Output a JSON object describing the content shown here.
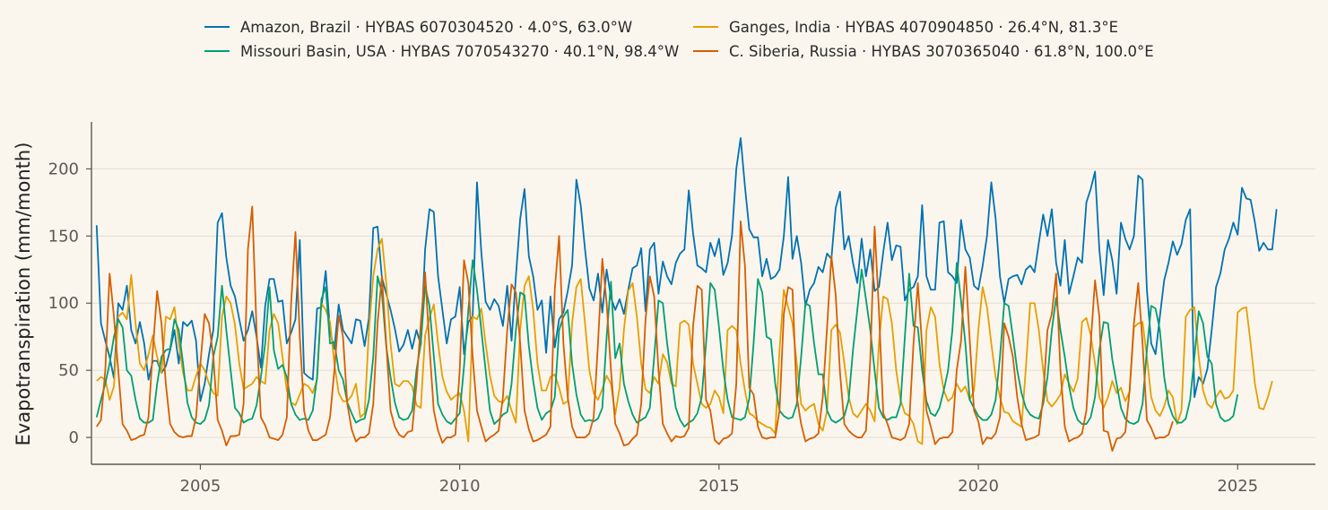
{
  "chart_data": {
    "type": "line",
    "title": "",
    "xlabel": "",
    "ylabel": "Evapotranspiration (mm/month)",
    "xlim": [
      2002.9,
      2026.5
    ],
    "ylim": [
      -20,
      235
    ],
    "x_ticks": [
      2005,
      2010,
      2015,
      2020,
      2025
    ],
    "y_ticks": [
      0,
      50,
      100,
      150,
      200
    ],
    "grid": "horizontal",
    "legend_position": "top-center",
    "legend_columns": 2,
    "x_start": 2003.0,
    "x_step_months": 1,
    "series": [
      {
        "name": "Amazon, Brazil · HYBAS 6070304520 · 4.0°S, 63.0°W",
        "color": "#0072b2",
        "values": [
          158,
          85,
          72,
          60,
          44,
          100,
          95,
          113,
          80,
          70,
          86,
          70,
          43,
          57,
          57,
          48,
          53,
          65,
          80,
          55,
          86,
          83,
          87,
          72,
          27,
          40,
          62,
          80,
          160,
          167,
          134,
          113,
          105,
          88,
          72,
          80,
          94,
          75,
          52,
          98,
          118,
          118,
          101,
          102,
          70,
          78,
          88,
          147,
          48,
          45,
          43,
          96,
          97,
          124,
          79,
          66,
          99,
          80,
          75,
          70,
          88,
          87,
          68,
          89,
          156,
          157,
          119,
          107,
          95,
          81,
          64,
          69,
          80,
          66,
          80,
          69,
          140,
          170,
          168,
          120,
          95,
          70,
          88,
          90,
          112,
          62,
          86,
          90,
          190,
          138,
          101,
          95,
          103,
          98,
          83,
          113,
          72,
          120,
          163,
          185,
          135,
          120,
          95,
          102,
          63,
          105,
          67,
          88,
          93,
          109,
          128,
          192,
          173,
          140,
          111,
          102,
          122,
          93,
          125,
          104,
          95,
          103,
          92,
          110,
          126,
          128,
          141,
          94,
          140,
          145,
          107,
          131,
          120,
          114,
          130,
          137,
          140,
          184,
          152,
          128,
          126,
          123,
          145,
          135,
          148,
          121,
          130,
          150,
          200,
          223,
          187,
          155,
          149,
          149,
          120,
          133,
          118,
          120,
          125,
          150,
          194,
          133,
          150,
          130,
          98,
          110,
          115,
          127,
          123,
          137,
          133,
          171,
          183,
          140,
          150,
          130,
          115,
          148,
          120,
          140,
          109,
          112,
          138,
          160,
          132,
          143,
          142,
          102,
          110,
          112,
          120,
          173,
          120,
          110,
          110,
          160,
          161,
          123,
          120,
          115,
          162,
          140,
          134,
          113,
          110,
          128,
          150,
          190,
          163,
          120,
          100,
          118,
          120,
          121,
          114,
          125,
          128,
          123,
          145,
          166,
          150,
          170,
          130,
          113,
          147,
          107,
          120,
          134,
          130,
          175,
          185,
          198,
          140,
          106,
          147,
          132,
          107,
          160,
          148,
          140,
          150,
          195,
          192,
          110,
          70,
          62,
          90,
          117,
          130,
          146,
          136,
          144,
          162,
          170,
          30,
          45,
          40,
          51,
          80,
          112,
          122,
          140,
          148,
          160,
          151,
          186,
          178,
          177,
          160,
          139,
          145,
          140,
          140,
          170
        ]
      },
      {
        "name": "Ganges, India · HYBAS 4070904850 · 26.4°N, 81.3°E",
        "color": "#e69f00",
        "values": [
          42,
          45,
          43,
          28,
          38,
          90,
          93,
          88,
          121,
          85,
          55,
          50,
          62,
          76,
          60,
          48,
          90,
          88,
          97,
          70,
          48,
          35,
          35,
          46,
          55,
          50,
          40,
          33,
          31,
          90,
          105,
          100,
          84,
          55,
          36,
          38,
          40,
          45,
          42,
          40,
          80,
          92,
          85,
          60,
          35,
          26,
          24,
          32,
          40,
          38,
          33,
          43,
          100,
          95,
          86,
          55,
          33,
          27,
          27,
          31,
          40,
          15,
          18,
          80,
          120,
          140,
          148,
          115,
          70,
          40,
          38,
          42,
          42,
          38,
          24,
          22,
          76,
          89,
          99,
          70,
          45,
          34,
          28,
          31,
          33,
          20,
          -3,
          90,
          88,
          96,
          70,
          46,
          31,
          27,
          26,
          31,
          20,
          11,
          80,
          113,
          120,
          95,
          55,
          35,
          35,
          45,
          47,
          37,
          25,
          27,
          85,
          112,
          118,
          85,
          50,
          33,
          28,
          36,
          46,
          40,
          17,
          37,
          80,
          109,
          115,
          90,
          55,
          36,
          33,
          45,
          40,
          62,
          56,
          40,
          38,
          85,
          87,
          84,
          55,
          40,
          25,
          22,
          25,
          35,
          30,
          18,
          80,
          83,
          80,
          55,
          35,
          18,
          16,
          12,
          10,
          8,
          7,
          3,
          65,
          110,
          97,
          85,
          55,
          25,
          20,
          23,
          25,
          10,
          5,
          20,
          80,
          84,
          78,
          55,
          30,
          18,
          15,
          20,
          25,
          20,
          12,
          70,
          105,
          103,
          85,
          50,
          28,
          18,
          16,
          10,
          -3,
          -5,
          80,
          97,
          90,
          55,
          35,
          27,
          30,
          40,
          34,
          38,
          28,
          35,
          80,
          112,
          97,
          70,
          45,
          30,
          19,
          18,
          12,
          10,
          8,
          52,
          100,
          100,
          80,
          50,
          27,
          23,
          27,
          32,
          47,
          40,
          34,
          44,
          86,
          89,
          76,
          55,
          30,
          22,
          30,
          42,
          33,
          37,
          27,
          34,
          82,
          85,
          86,
          60,
          30,
          20,
          16,
          23,
          35,
          30,
          10,
          20,
          90,
          95,
          97,
          60,
          35,
          25,
          22,
          30,
          35,
          29,
          30,
          35,
          93,
          96,
          97,
          70,
          40,
          22,
          21,
          30,
          42
        ]
      },
      {
        "name": "Missouri Basin, USA · HYBAS 7070543270 · 40.1°N, 98.4°W",
        "color": "#009e73",
        "values": [
          15,
          28,
          40,
          55,
          75,
          88,
          82,
          50,
          46,
          28,
          14,
          11,
          11,
          13,
          40,
          60,
          65,
          66,
          88,
          80,
          55,
          26,
          15,
          11,
          10,
          13,
          24,
          60,
          75,
          113,
          80,
          50,
          22,
          18,
          11,
          13,
          14,
          24,
          45,
          70,
          112,
          65,
          51,
          54,
          45,
          25,
          17,
          13,
          14,
          13,
          20,
          45,
          103,
          112,
          70,
          71,
          50,
          43,
          26,
          18,
          11,
          13,
          14,
          28,
          60,
          120,
          108,
          68,
          45,
          26,
          15,
          13,
          14,
          20,
          50,
          70,
          113,
          98,
          61,
          25,
          17,
          12,
          10,
          14,
          18,
          53,
          95,
          132,
          110,
          80,
          50,
          20,
          10,
          13,
          17,
          19,
          40,
          80,
          108,
          106,
          68,
          42,
          22,
          13,
          18,
          20,
          30,
          80,
          90,
          95,
          55,
          32,
          17,
          12,
          13,
          12,
          14,
          22,
          75,
          116,
          59,
          70,
          40,
          27,
          17,
          11,
          13,
          15,
          22,
          60,
          102,
          100,
          70,
          45,
          22,
          13,
          8,
          11,
          13,
          18,
          30,
          70,
          115,
          110,
          82,
          50,
          28,
          15,
          14,
          13,
          15,
          29,
          70,
          118,
          108,
          75,
          73,
          40,
          20,
          16,
          14,
          15,
          25,
          60,
          100,
          98,
          70,
          47,
          47,
          20,
          13,
          11,
          13,
          16,
          28,
          65,
          95,
          125,
          103,
          80,
          50,
          22,
          15,
          13,
          15,
          15,
          25,
          75,
          122,
          83,
          82,
          50,
          27,
          18,
          16,
          22,
          35,
          50,
          80,
          130,
          102,
          70,
          28,
          22,
          16,
          13,
          13,
          17,
          28,
          60,
          100,
          98,
          75,
          50,
          33,
          22,
          17,
          15,
          14,
          25,
          45,
          80,
          104,
          80,
          60,
          38,
          22,
          13,
          10,
          10,
          15,
          30,
          65,
          86,
          85,
          58,
          40,
          22,
          14,
          11,
          10,
          12,
          25,
          65,
          98,
          96,
          80,
          45,
          25,
          16,
          11,
          11,
          14,
          28,
          60,
          94,
          85,
          60,
          55,
          25,
          15,
          12,
          13,
          16,
          32
        ]
      },
      {
        "name": "C. Siberia, Russia · HYBAS 3070365040 · 61.8°N, 100.0°E",
        "color": "#d55e00",
        "values": [
          8,
          13,
          50,
          122,
          90,
          50,
          10,
          5,
          -2,
          -1,
          1,
          2,
          15,
          65,
          109,
          85,
          40,
          10,
          4,
          1,
          0,
          1,
          1,
          15,
          55,
          92,
          85,
          60,
          13,
          5,
          -6,
          1,
          1,
          2,
          25,
          140,
          172,
          80,
          15,
          9,
          0,
          -1,
          -2,
          2,
          15,
          100,
          153,
          75,
          20,
          5,
          -2,
          -2,
          0,
          2,
          15,
          50,
          91,
          75,
          25,
          6,
          -3,
          0,
          0,
          3,
          25,
          85,
          120,
          70,
          20,
          8,
          2,
          0,
          4,
          5,
          40,
          85,
          123,
          68,
          20,
          5,
          -4,
          0,
          0,
          2,
          50,
          132,
          115,
          60,
          20,
          8,
          -3,
          0,
          2,
          5,
          30,
          80,
          114,
          108,
          70,
          20,
          6,
          -3,
          -2,
          0,
          2,
          8,
          110,
          150,
          70,
          30,
          8,
          0,
          0,
          0,
          3,
          15,
          70,
          133,
          100,
          50,
          10,
          3,
          -6,
          -5,
          -1,
          2,
          25,
          88,
          120,
          105,
          50,
          10,
          3,
          -3,
          1,
          0,
          1,
          7,
          83,
          113,
          110,
          28,
          20,
          -2,
          -5,
          -1,
          0,
          3,
          40,
          161,
          128,
          37,
          32,
          8,
          0,
          -1,
          0,
          0,
          20,
          92,
          112,
          110,
          30,
          10,
          -3,
          -1,
          0,
          3,
          30,
          82,
          135,
          106,
          48,
          10,
          5,
          2,
          0,
          0,
          5,
          58,
          157,
          95,
          18,
          10,
          0,
          -1,
          -2,
          0,
          10,
          70,
          115,
          68,
          20,
          8,
          -5,
          -1,
          0,
          0,
          4,
          50,
          72,
          127,
          73,
          20,
          12,
          -5,
          0,
          -1,
          3,
          15,
          85,
          75,
          60,
          30,
          10,
          -2,
          -1,
          0,
          2,
          30,
          80,
          92,
          122,
          50,
          8,
          -3,
          -1,
          0,
          3,
          20,
          70,
          117,
          90,
          5,
          4,
          -10,
          -1,
          0,
          4,
          35,
          85,
          115,
          70,
          13,
          7,
          -1,
          0,
          0,
          2,
          12
        ]
      }
    ]
  }
}
